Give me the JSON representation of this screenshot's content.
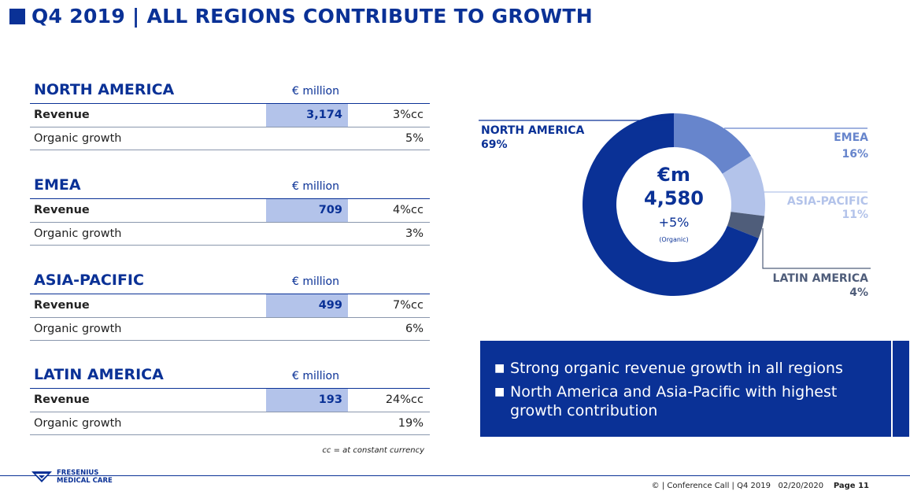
{
  "slide": {
    "title": "Q4 2019 | ALL REGIONS CONTRIBUTE TO GROWTH"
  },
  "regions": [
    {
      "name": "NORTH AMERICA",
      "unit": "€ million",
      "revenue_label": "Revenue",
      "revenue_value": "3,174",
      "revenue_growth": "3%cc",
      "organic_label": "Organic growth",
      "organic_value": "5%"
    },
    {
      "name": "EMEA",
      "unit": "€ million",
      "revenue_label": "Revenue",
      "revenue_value": "709",
      "revenue_growth": "4%cc",
      "organic_label": "Organic growth",
      "organic_value": "3%"
    },
    {
      "name": "ASIA-PACIFIC",
      "unit": "€ million",
      "revenue_label": "Revenue",
      "revenue_value": "499",
      "revenue_growth": "7%cc",
      "organic_label": "Organic growth",
      "organic_value": "6%"
    },
    {
      "name": "LATIN AMERICA",
      "unit": "€ million",
      "revenue_label": "Revenue",
      "revenue_value": "193",
      "revenue_growth": "24%cc",
      "organic_label": "Organic growth",
      "organic_value": "19%"
    }
  ],
  "footnote": "cc = at constant currency",
  "chart_data": {
    "type": "pie",
    "center": {
      "unit": "€m",
      "total": "4,580",
      "growth": "+5%",
      "note": "(Organic)"
    },
    "slices": [
      {
        "name": "EMEA",
        "label": "16%",
        "value": 16,
        "color": "#6785cc"
      },
      {
        "name": "ASIA-PACIFIC",
        "label": "11%",
        "value": 11,
        "color": "#b3c3ea"
      },
      {
        "name": "LATIN AMERICA",
        "label": "4%",
        "value": 4,
        "color": "#4f5d7a"
      },
      {
        "name": "NORTH AMERICA",
        "label": "69%",
        "value": 69,
        "color": "#0a3196"
      }
    ]
  },
  "callout": {
    "bullets": [
      "Strong organic revenue growth in all regions",
      "North America and Asia-Pacific with highest growth contribution"
    ]
  },
  "footer": {
    "logo_line1": "FRESENIUS",
    "logo_line2": "MEDICAL CARE",
    "meta": "© | Conference Call | Q4 2019   02/20/2020",
    "page": "Page 11"
  },
  "colors": {
    "brand": "#0a3196",
    "highlight": "#b3c3ea"
  }
}
